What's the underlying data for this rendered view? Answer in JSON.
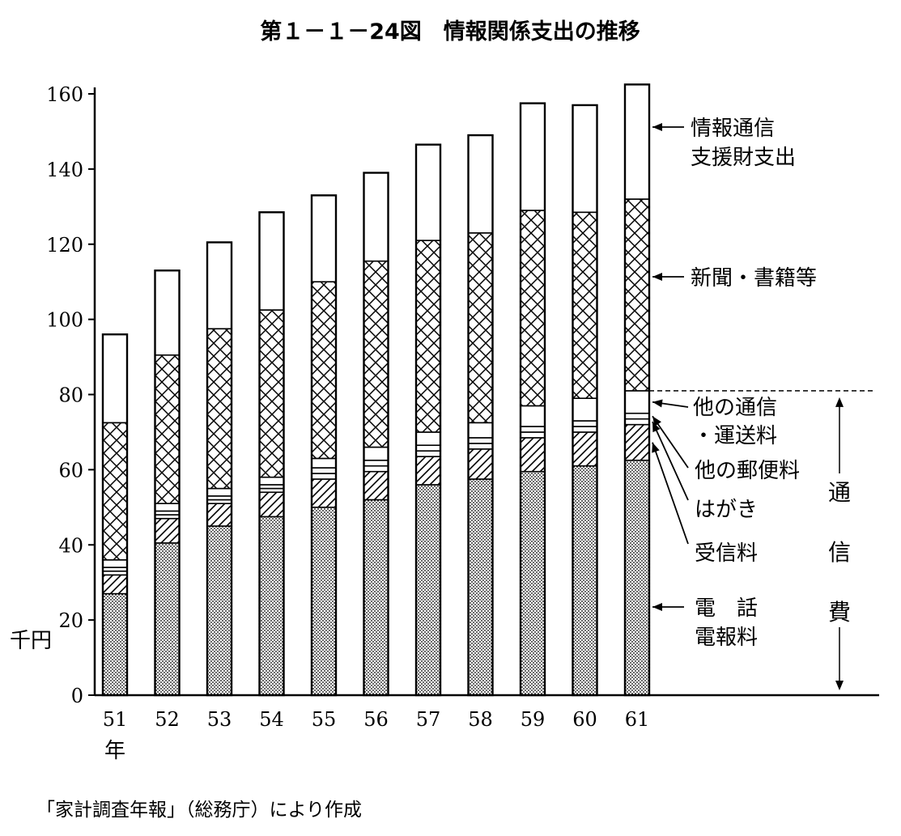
{
  "chart_data": {
    "type": "bar",
    "stacked": true,
    "title": "第１－１－24図　情報関係支出の推移",
    "source": "「家計調査年報」（総務庁）により作成",
    "y_unit": "千円",
    "x_unit": "年",
    "ylim": [
      0,
      160
    ],
    "yticks": [
      "0",
      "20",
      "40",
      "60",
      "80",
      "100",
      "120",
      "140",
      "160"
    ],
    "categories": [
      "51",
      "52",
      "53",
      "54",
      "55",
      "56",
      "57",
      "58",
      "59",
      "60",
      "61"
    ],
    "series": [
      {
        "name": "電　話 電報料",
        "values": [
          27,
          40.5,
          45,
          47.5,
          50,
          52,
          56,
          57.5,
          59.5,
          61,
          62.5
        ]
      },
      {
        "name": "受信料",
        "values": [
          5,
          6.5,
          6,
          6.5,
          7.5,
          7.5,
          7.5,
          8,
          9,
          9,
          9.5
        ]
      },
      {
        "name": "はがき",
        "values": [
          1,
          1,
          1,
          1,
          1.5,
          1.5,
          1.5,
          1.5,
          1.5,
          1.5,
          1.5
        ]
      },
      {
        "name": "他の郵便料",
        "values": [
          1,
          1,
          1,
          1,
          1.5,
          1.5,
          1.5,
          1.5,
          1.5,
          1.5,
          1.5
        ]
      },
      {
        "name": "他の通信 ・運送料",
        "values": [
          2,
          2,
          2,
          2,
          2.5,
          3.5,
          3.5,
          4,
          5.5,
          6,
          6
        ]
      },
      {
        "name": "新聞・書籍等",
        "values": [
          36.5,
          39.5,
          42.5,
          44.5,
          47,
          49.5,
          51,
          50.5,
          52,
          49.5,
          51
        ]
      },
      {
        "name": "情報通信 支援財支出",
        "values": [
          23.5,
          22.5,
          23,
          26,
          23,
          23.5,
          25.5,
          26,
          28.5,
          28.5,
          30.5
        ]
      }
    ],
    "right_labels": {
      "info": [
        "情報通信",
        "支援財支出"
      ],
      "news": "新聞・書籍等",
      "other": [
        "他の通信",
        "・運送料"
      ],
      "postal": "他の郵便料",
      "postcard": "はがき",
      "reception": "受信料",
      "phone": [
        "電　話",
        "電報料"
      ],
      "comm": [
        "通",
        "信",
        "費"
      ]
    },
    "communication_total_ref": 81,
    "legend": "right"
  }
}
